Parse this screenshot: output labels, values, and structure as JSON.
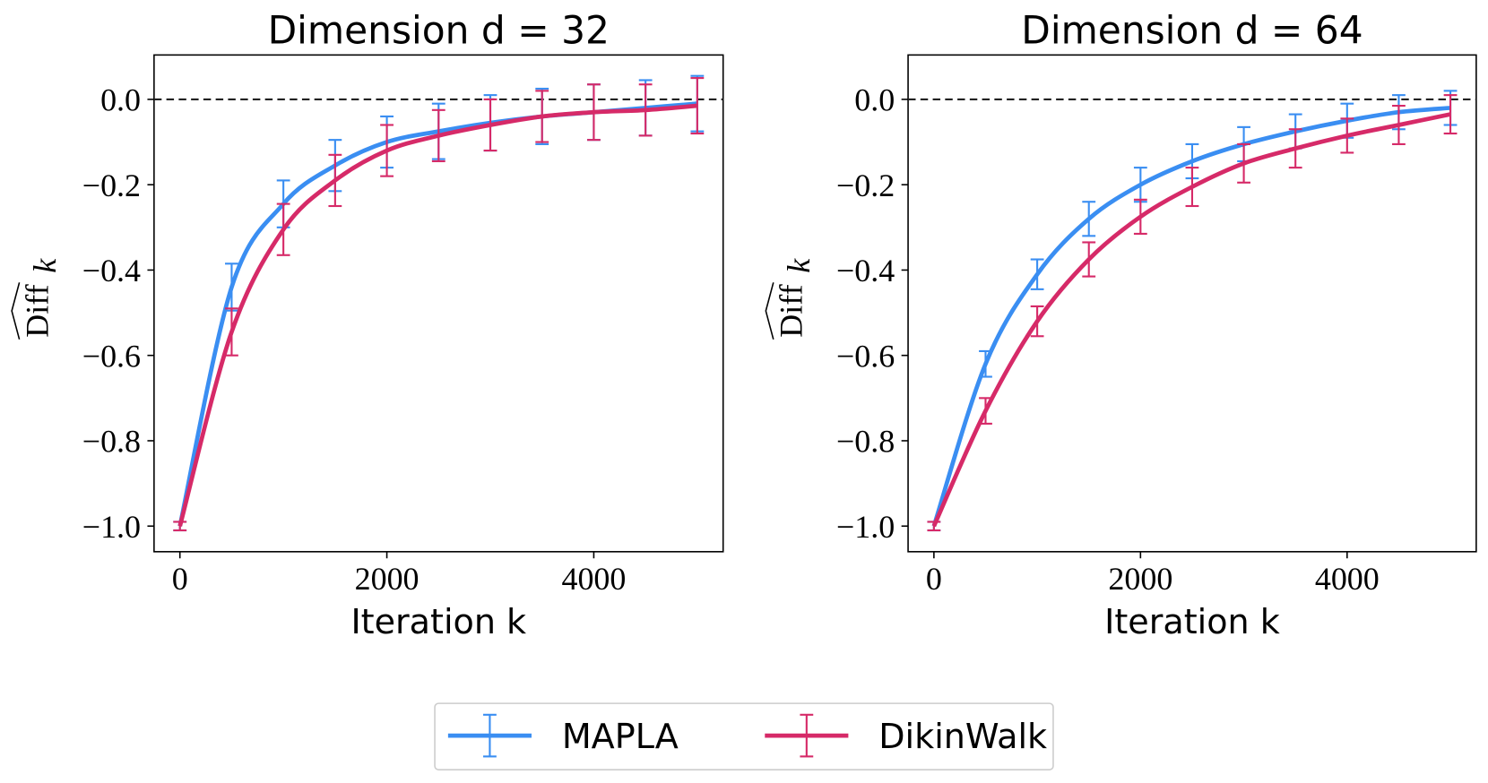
{
  "chart_data": [
    {
      "type": "line",
      "title": "Dimension d = 32",
      "xlabel": "Iteration k",
      "ylabel": "Diff",
      "ylabel_subscript": "k",
      "x": [
        0,
        500,
        1000,
        1500,
        2000,
        2500,
        3000,
        3500,
        4000,
        4500,
        5000
      ],
      "series": [
        {
          "name": "MAPLA",
          "color": "#3a8ef2",
          "values": [
            -1.0,
            -0.44,
            -0.245,
            -0.155,
            -0.1,
            -0.075,
            -0.055,
            -0.04,
            -0.03,
            -0.02,
            -0.01
          ],
          "errors": [
            0.01,
            0.055,
            0.055,
            0.06,
            0.06,
            0.065,
            0.065,
            0.065,
            0.065,
            0.065,
            0.065
          ]
        },
        {
          "name": "DikinWalk",
          "color": "#d62a68",
          "values": [
            -1.0,
            -0.545,
            -0.305,
            -0.19,
            -0.12,
            -0.085,
            -0.06,
            -0.04,
            -0.03,
            -0.025,
            -0.015
          ],
          "errors": [
            0.01,
            0.055,
            0.06,
            0.06,
            0.06,
            0.06,
            0.06,
            0.06,
            0.065,
            0.06,
            0.065
          ]
        }
      ],
      "xlim": [
        -250,
        5250
      ],
      "ylim": [
        -1.06,
        0.104
      ],
      "xticks": [
        0,
        2000,
        4000
      ],
      "yticks": [
        {
          "value": -1.0,
          "label": "−1.0"
        },
        {
          "value": -0.8,
          "label": "−0.8"
        },
        {
          "value": -0.6,
          "label": "−0.6"
        },
        {
          "value": -0.4,
          "label": "−0.4"
        },
        {
          "value": -0.2,
          "label": "−0.2"
        },
        {
          "value": 0.0,
          "label": "0.0"
        }
      ],
      "hline": 0
    },
    {
      "type": "line",
      "title": "Dimension d = 64",
      "xlabel": "Iteration k",
      "ylabel": "Diff",
      "ylabel_subscript": "k",
      "x": [
        0,
        500,
        1000,
        1500,
        2000,
        2500,
        3000,
        3500,
        4000,
        4500,
        5000
      ],
      "series": [
        {
          "color": "#3a8ef2",
          "values": [
            -1.0,
            -0.62,
            -0.41,
            -0.28,
            -0.2,
            -0.145,
            -0.105,
            -0.075,
            -0.05,
            -0.03,
            -0.02
          ],
          "errors": [
            0.01,
            0.03,
            0.035,
            0.04,
            0.04,
            0.04,
            0.04,
            0.04,
            0.04,
            0.04,
            0.04
          ]
        },
        {
          "color": "#d62a68",
          "values": [
            -1.0,
            -0.73,
            -0.52,
            -0.375,
            -0.275,
            -0.205,
            -0.15,
            -0.115,
            -0.085,
            -0.06,
            -0.035
          ],
          "errors": [
            0.01,
            0.03,
            0.035,
            0.04,
            0.04,
            0.045,
            0.045,
            0.045,
            0.04,
            0.045,
            0.045
          ]
        }
      ],
      "xlim": [
        -250,
        5250
      ],
      "ylim": [
        -1.06,
        0.104
      ],
      "xticks": [
        0,
        2000,
        4000
      ],
      "yticks": [
        {
          "value": -1.0,
          "label": "−1.0"
        },
        {
          "value": -0.8,
          "label": "−0.8"
        },
        {
          "value": -0.6,
          "label": "−0.6"
        },
        {
          "value": -0.4,
          "label": "−0.4"
        },
        {
          "value": -0.2,
          "label": "−0.2"
        },
        {
          "value": 0.0,
          "label": "0.0"
        }
      ],
      "hline": 0
    }
  ]
}
